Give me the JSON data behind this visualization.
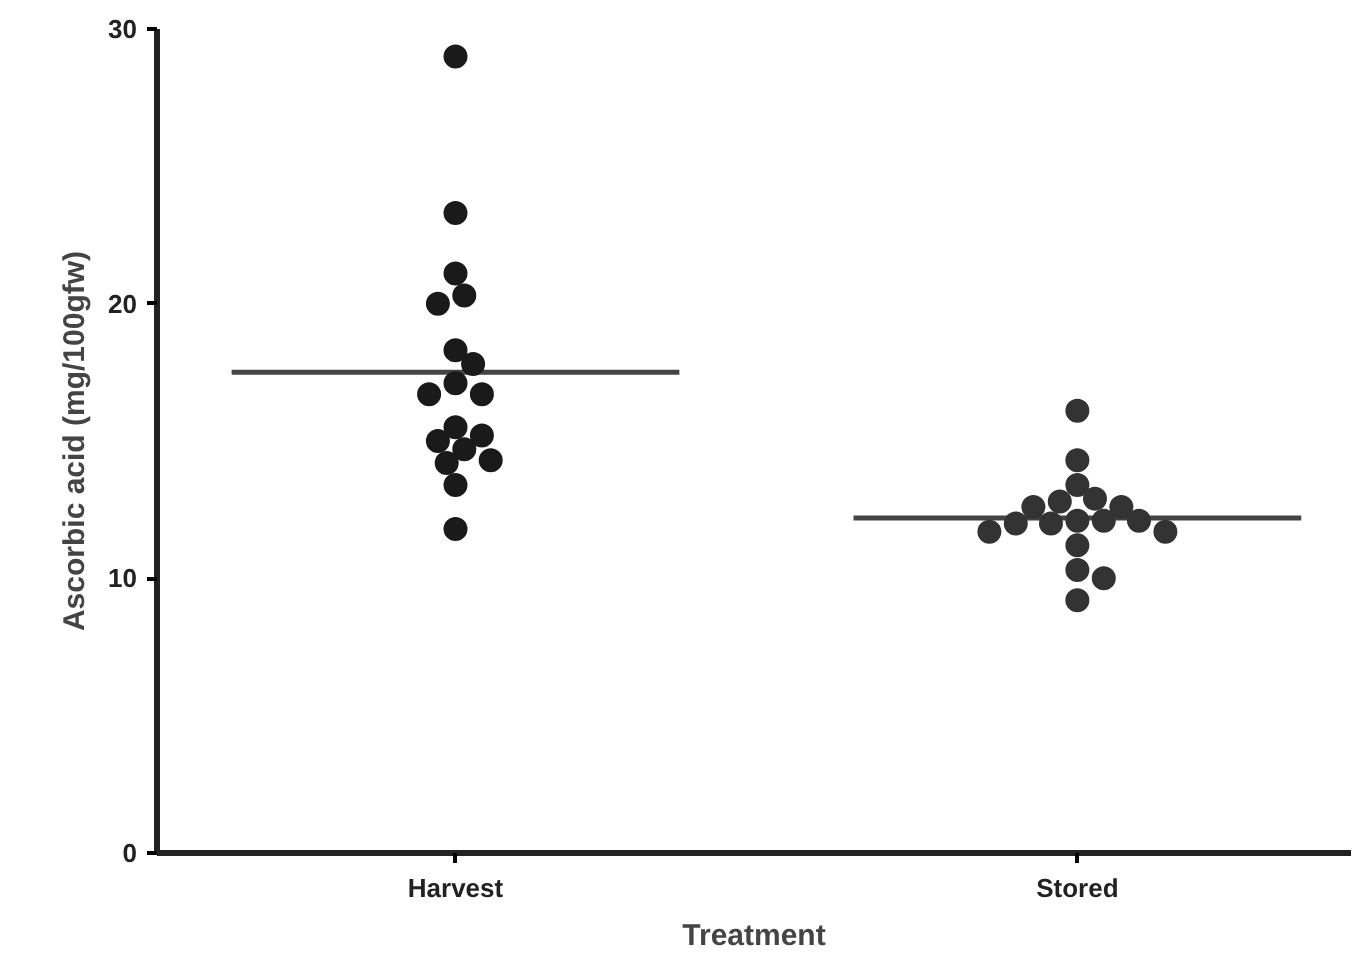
{
  "chart_data": {
    "type": "scatter",
    "xlabel": "Treatment",
    "ylabel": "Ascorbic acid (mg/100gfw)",
    "categories": [
      "Harvest",
      "Stored"
    ],
    "ylim": [
      0,
      30
    ],
    "yticks": [
      0,
      10,
      20,
      30
    ],
    "grid": false,
    "marker": "circle",
    "series": [
      {
        "color": "#1a1a1a",
        "x": [
          "Harvest",
          "Harvest",
          "Harvest",
          "Harvest",
          "Harvest",
          "Harvest",
          "Harvest",
          "Harvest",
          "Harvest",
          "Harvest",
          "Harvest",
          "Harvest",
          "Harvest",
          "Harvest",
          "Harvest",
          "Harvest",
          "Harvest",
          "Harvest"
        ],
        "values": [
          29.0,
          23.3,
          21.1,
          20.3,
          20.0,
          18.3,
          17.8,
          17.1,
          16.7,
          16.7,
          15.5,
          15.2,
          15.0,
          14.7,
          14.3,
          14.2,
          13.4,
          11.8
        ]
      },
      {
        "color": "#333333",
        "x": [
          "Stored",
          "Stored",
          "Stored",
          "Stored",
          "Stored",
          "Stored",
          "Stored",
          "Stored",
          "Stored",
          "Stored",
          "Stored",
          "Stored",
          "Stored",
          "Stored",
          "Stored",
          "Stored",
          "Stored",
          "Stored"
        ],
        "values": [
          16.1,
          14.3,
          13.4,
          12.9,
          12.8,
          12.6,
          12.6,
          12.1,
          12.0,
          12.1,
          12.0,
          12.1,
          11.7,
          11.7,
          11.2,
          10.3,
          10.0,
          9.2
        ]
      }
    ],
    "ref_lines": [
      {
        "axis": "y",
        "value": 17.5,
        "color": "#444444"
      },
      {
        "axis": "y",
        "value": 12.2,
        "color": "#444444"
      }
    ]
  }
}
